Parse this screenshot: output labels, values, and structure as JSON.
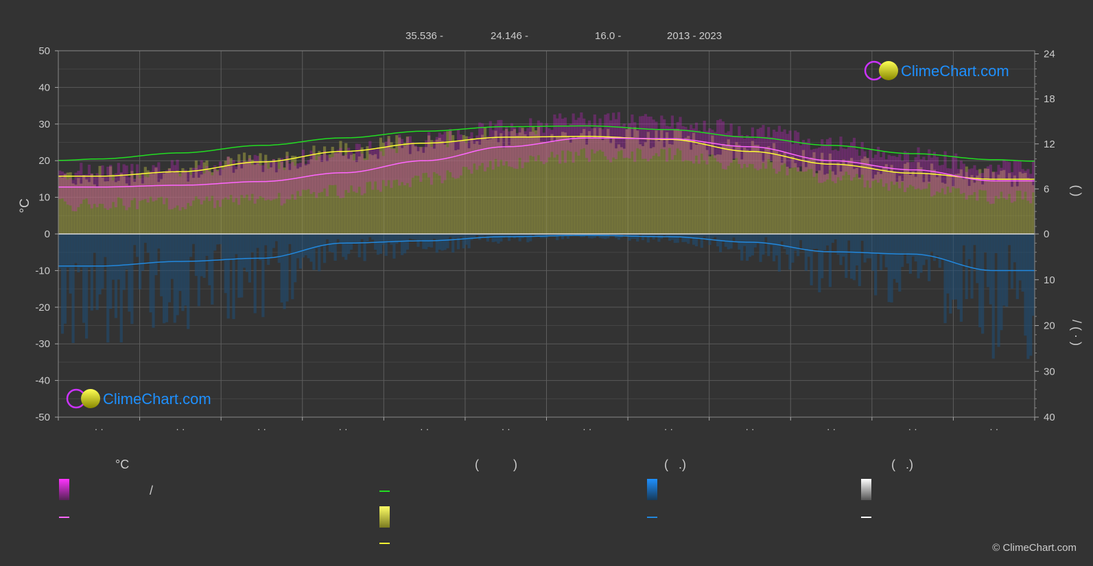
{
  "header": {
    "latitude": "35.536 -",
    "longitude": "24.146 -",
    "elevation": "16.0 -",
    "years": "2013 - 2023"
  },
  "brand": {
    "name": "ClimeChart.com",
    "copyright": "© ClimeChart.com",
    "colors": {
      "text": "#1e90ff",
      "ring": "#cc33ff",
      "ball": "#d4d400"
    }
  },
  "legend": {
    "temp_header": "°C",
    "col2_header": "(          )",
    "col3_header": "(   .)",
    "col4_header": "(   .)",
    "slash": "/"
  },
  "chart_data": {
    "type": "area",
    "x_ticks": [
      "· ·",
      "· ·",
      "· ·",
      "· ·",
      "· ·",
      "· ·",
      "· ·",
      "· ·",
      "· ·",
      "· ·",
      "· ·",
      "· ·"
    ],
    "left_axis": {
      "label": "°C",
      "range": [
        -50,
        50
      ],
      "ticks": [
        50,
        40,
        30,
        20,
        10,
        0,
        -10,
        -20,
        -30,
        -40,
        -50
      ]
    },
    "right_axis_top": {
      "range": [
        0,
        24
      ],
      "ticks": [
        24,
        18,
        12,
        6,
        0
      ],
      "label": "(    )"
    },
    "right_axis_bottom": {
      "range": [
        0,
        40
      ],
      "ticks": [
        10,
        20,
        30,
        40
      ],
      "label": "/   ( · )"
    },
    "grid": true,
    "colors": {
      "daylight": "#22dd22",
      "sunshine_line": "#ffff33",
      "sunshine_area": "#a0a040",
      "temp_mean": "#ff66ff",
      "temp_range": "#e020e0",
      "precip_line": "#2288dd",
      "precip_bars": "#1e4e78"
    },
    "series": [
      {
        "key": "daylight",
        "unit": "hours",
        "x": [
          0,
          0.5,
          1.5,
          2.5,
          3.5,
          4.5,
          5.5,
          6.5,
          7.5,
          8.5,
          9.5,
          10.5,
          11.5,
          12
        ],
        "values": [
          9.8,
          10.0,
          10.8,
          11.8,
          12.8,
          13.7,
          14.3,
          14.4,
          13.9,
          12.9,
          11.8,
          10.7,
          9.9,
          9.7
        ]
      },
      {
        "key": "sunshine",
        "unit": "hours",
        "x": [
          0,
          0.5,
          1.5,
          2.5,
          3.5,
          4.5,
          5.5,
          6.5,
          7.5,
          8.5,
          9.5,
          10.5,
          11.5,
          12
        ],
        "values": [
          7.7,
          7.7,
          8.3,
          9.6,
          11.0,
          12.1,
          12.9,
          13.0,
          12.6,
          11.0,
          9.3,
          8.1,
          7.3,
          7.3
        ]
      },
      {
        "key": "temp_mean",
        "unit": "°C",
        "x": [
          0,
          0.5,
          1.5,
          2.5,
          3.5,
          4.5,
          5.5,
          6.5,
          7.5,
          8.5,
          9.5,
          10.5,
          11.5,
          12
        ],
        "values": [
          12.8,
          12.8,
          13.3,
          14.3,
          16.7,
          20.0,
          23.8,
          26.2,
          26.0,
          23.8,
          20.0,
          17.5,
          14.5,
          14.5
        ]
      },
      {
        "key": "temp_max",
        "unit": "°C",
        "x": [
          0,
          0.5,
          1.5,
          2.5,
          3.5,
          4.5,
          5.5,
          6.5,
          7.5,
          8.5,
          9.5,
          10.5,
          11.5,
          12
        ],
        "values": [
          16.0,
          16.0,
          16.8,
          18.5,
          21.0,
          24.5,
          28.0,
          30.0,
          29.8,
          27.5,
          23.5,
          20.5,
          17.5,
          17.5
        ]
      },
      {
        "key": "temp_min",
        "unit": "°C",
        "x": [
          0,
          0.5,
          1.5,
          2.5,
          3.5,
          4.5,
          5.5,
          6.5,
          7.5,
          8.5,
          9.5,
          10.5,
          11.5,
          12
        ],
        "values": [
          10.0,
          10.0,
          10.3,
          11.3,
          13.5,
          17.0,
          21.0,
          23.5,
          23.5,
          21.0,
          17.5,
          14.5,
          12.0,
          12.0
        ]
      },
      {
        "key": "precip_daily",
        "unit": "mm",
        "x": [
          0,
          0.5,
          1.5,
          2.5,
          3.5,
          4.5,
          5.5,
          6.5,
          7.5,
          8.5,
          9.5,
          10.5,
          11.5,
          12
        ],
        "values": [
          7.0,
          7.0,
          6.0,
          5.3,
          2.0,
          1.5,
          0.6,
          0.3,
          0.6,
          1.8,
          3.9,
          4.4,
          8.0,
          8.0
        ]
      }
    ]
  }
}
